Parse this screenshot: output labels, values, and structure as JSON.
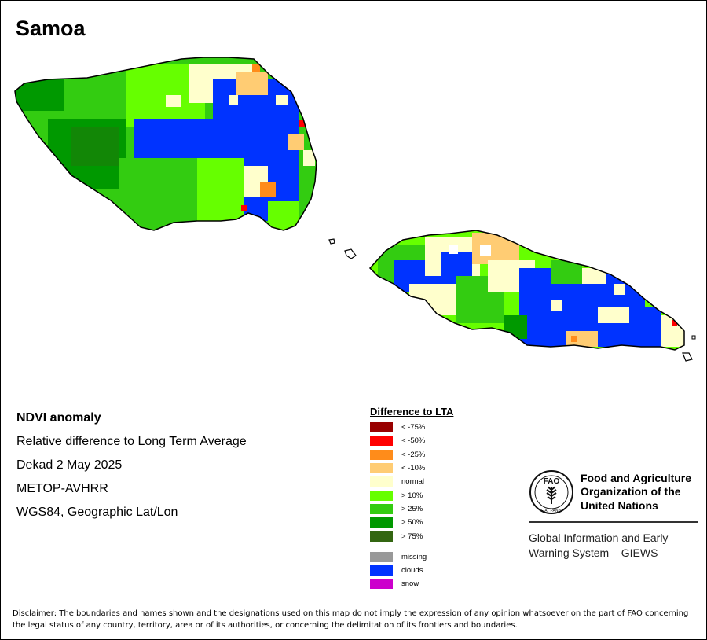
{
  "map": {
    "title": "Samoa",
    "colors": {
      "outline": "#000000",
      "islet_outline": "#000000"
    }
  },
  "info": {
    "lines": [
      "NDVI anomaly",
      "Relative difference to Long Term Average",
      "Dekad 2 May 2025",
      "METOP-AVHRR",
      "WGS84, Geographic Lat/Lon"
    ]
  },
  "legend": {
    "title": "Difference to LTA",
    "items": [
      {
        "label": "< -75%",
        "color": "#990000"
      },
      {
        "label": "< -50%",
        "color": "#ff0000"
      },
      {
        "label": "< -25%",
        "color": "#ff8c1a"
      },
      {
        "label": "< -10%",
        "color": "#ffcc73"
      },
      {
        "label": "normal",
        "color": "#ffffcc"
      },
      {
        "label": "> 10%",
        "color": "#66ff00"
      },
      {
        "label": "> 25%",
        "color": "#33cc11"
      },
      {
        "label": "> 50%",
        "color": "#009900"
      },
      {
        "label": "> 75%",
        "color": "#336611"
      }
    ],
    "extra": [
      {
        "label": "missing",
        "color": "#999999"
      },
      {
        "label": "clouds",
        "color": "#0033ff"
      },
      {
        "label": "snow",
        "color": "#cc00cc"
      }
    ]
  },
  "fao": {
    "org_lines": [
      "Food and Agriculture",
      "Organization of the",
      "United Nations"
    ],
    "logo_text": "FAO",
    "logo_motto": "FIAT PANIS",
    "system_lines": [
      "Global Information and Early",
      "Warning System – GIEWS"
    ]
  },
  "disclaimer": "Disclaimer: The boundaries and names shown and the designations used on this map do not imply the expression of any opinion whatsoever on the part of FAO concerning the legal status of any country, territory, area or of its authorities, or concerning the delimitation of its frontiers and boundaries."
}
